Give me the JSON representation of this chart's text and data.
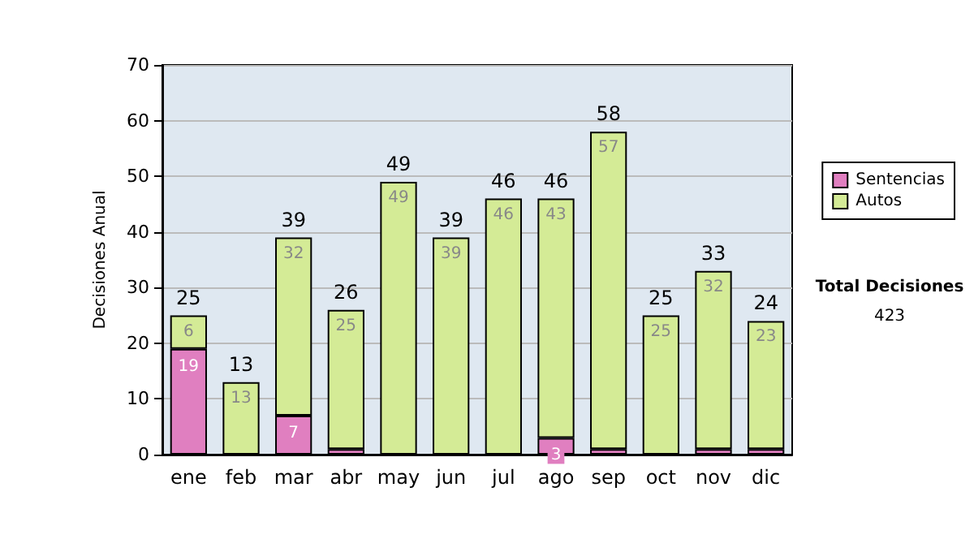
{
  "chart_data": {
    "type": "bar",
    "ylabel": "Decisiones Anual",
    "stacked": true,
    "categories": [
      "ene",
      "feb",
      "mar",
      "abr",
      "may",
      "jun",
      "jul",
      "ago",
      "sep",
      "oct",
      "nov",
      "dic"
    ],
    "series": [
      {
        "name": "Sentencias",
        "color": "#e07fc0",
        "values": [
          19,
          0,
          7,
          1,
          0,
          0,
          0,
          3,
          1,
          0,
          1,
          1
        ],
        "value_labels": [
          "19",
          null,
          "7",
          null,
          null,
          null,
          null,
          "3",
          null,
          null,
          null,
          null
        ]
      },
      {
        "name": "Autos",
        "color": "#d4eb96",
        "values": [
          6,
          13,
          32,
          25,
          49,
          39,
          46,
          43,
          57,
          25,
          32,
          23
        ],
        "value_labels": [
          "6",
          "13",
          "32",
          "25",
          "49",
          "39",
          "46",
          "43",
          "57",
          "25",
          "32",
          "23"
        ]
      }
    ],
    "totals": [
      "25",
      "13",
      "39",
      "26",
      "49",
      "39",
      "46",
      "46",
      "58",
      "25",
      "33",
      "24"
    ],
    "ylim": [
      0,
      70
    ],
    "yticks": [
      0,
      10,
      20,
      30,
      40,
      50,
      60,
      70
    ],
    "grid": "y",
    "legend": "right",
    "annotations": [
      "Total Decisiones",
      "423"
    ]
  }
}
